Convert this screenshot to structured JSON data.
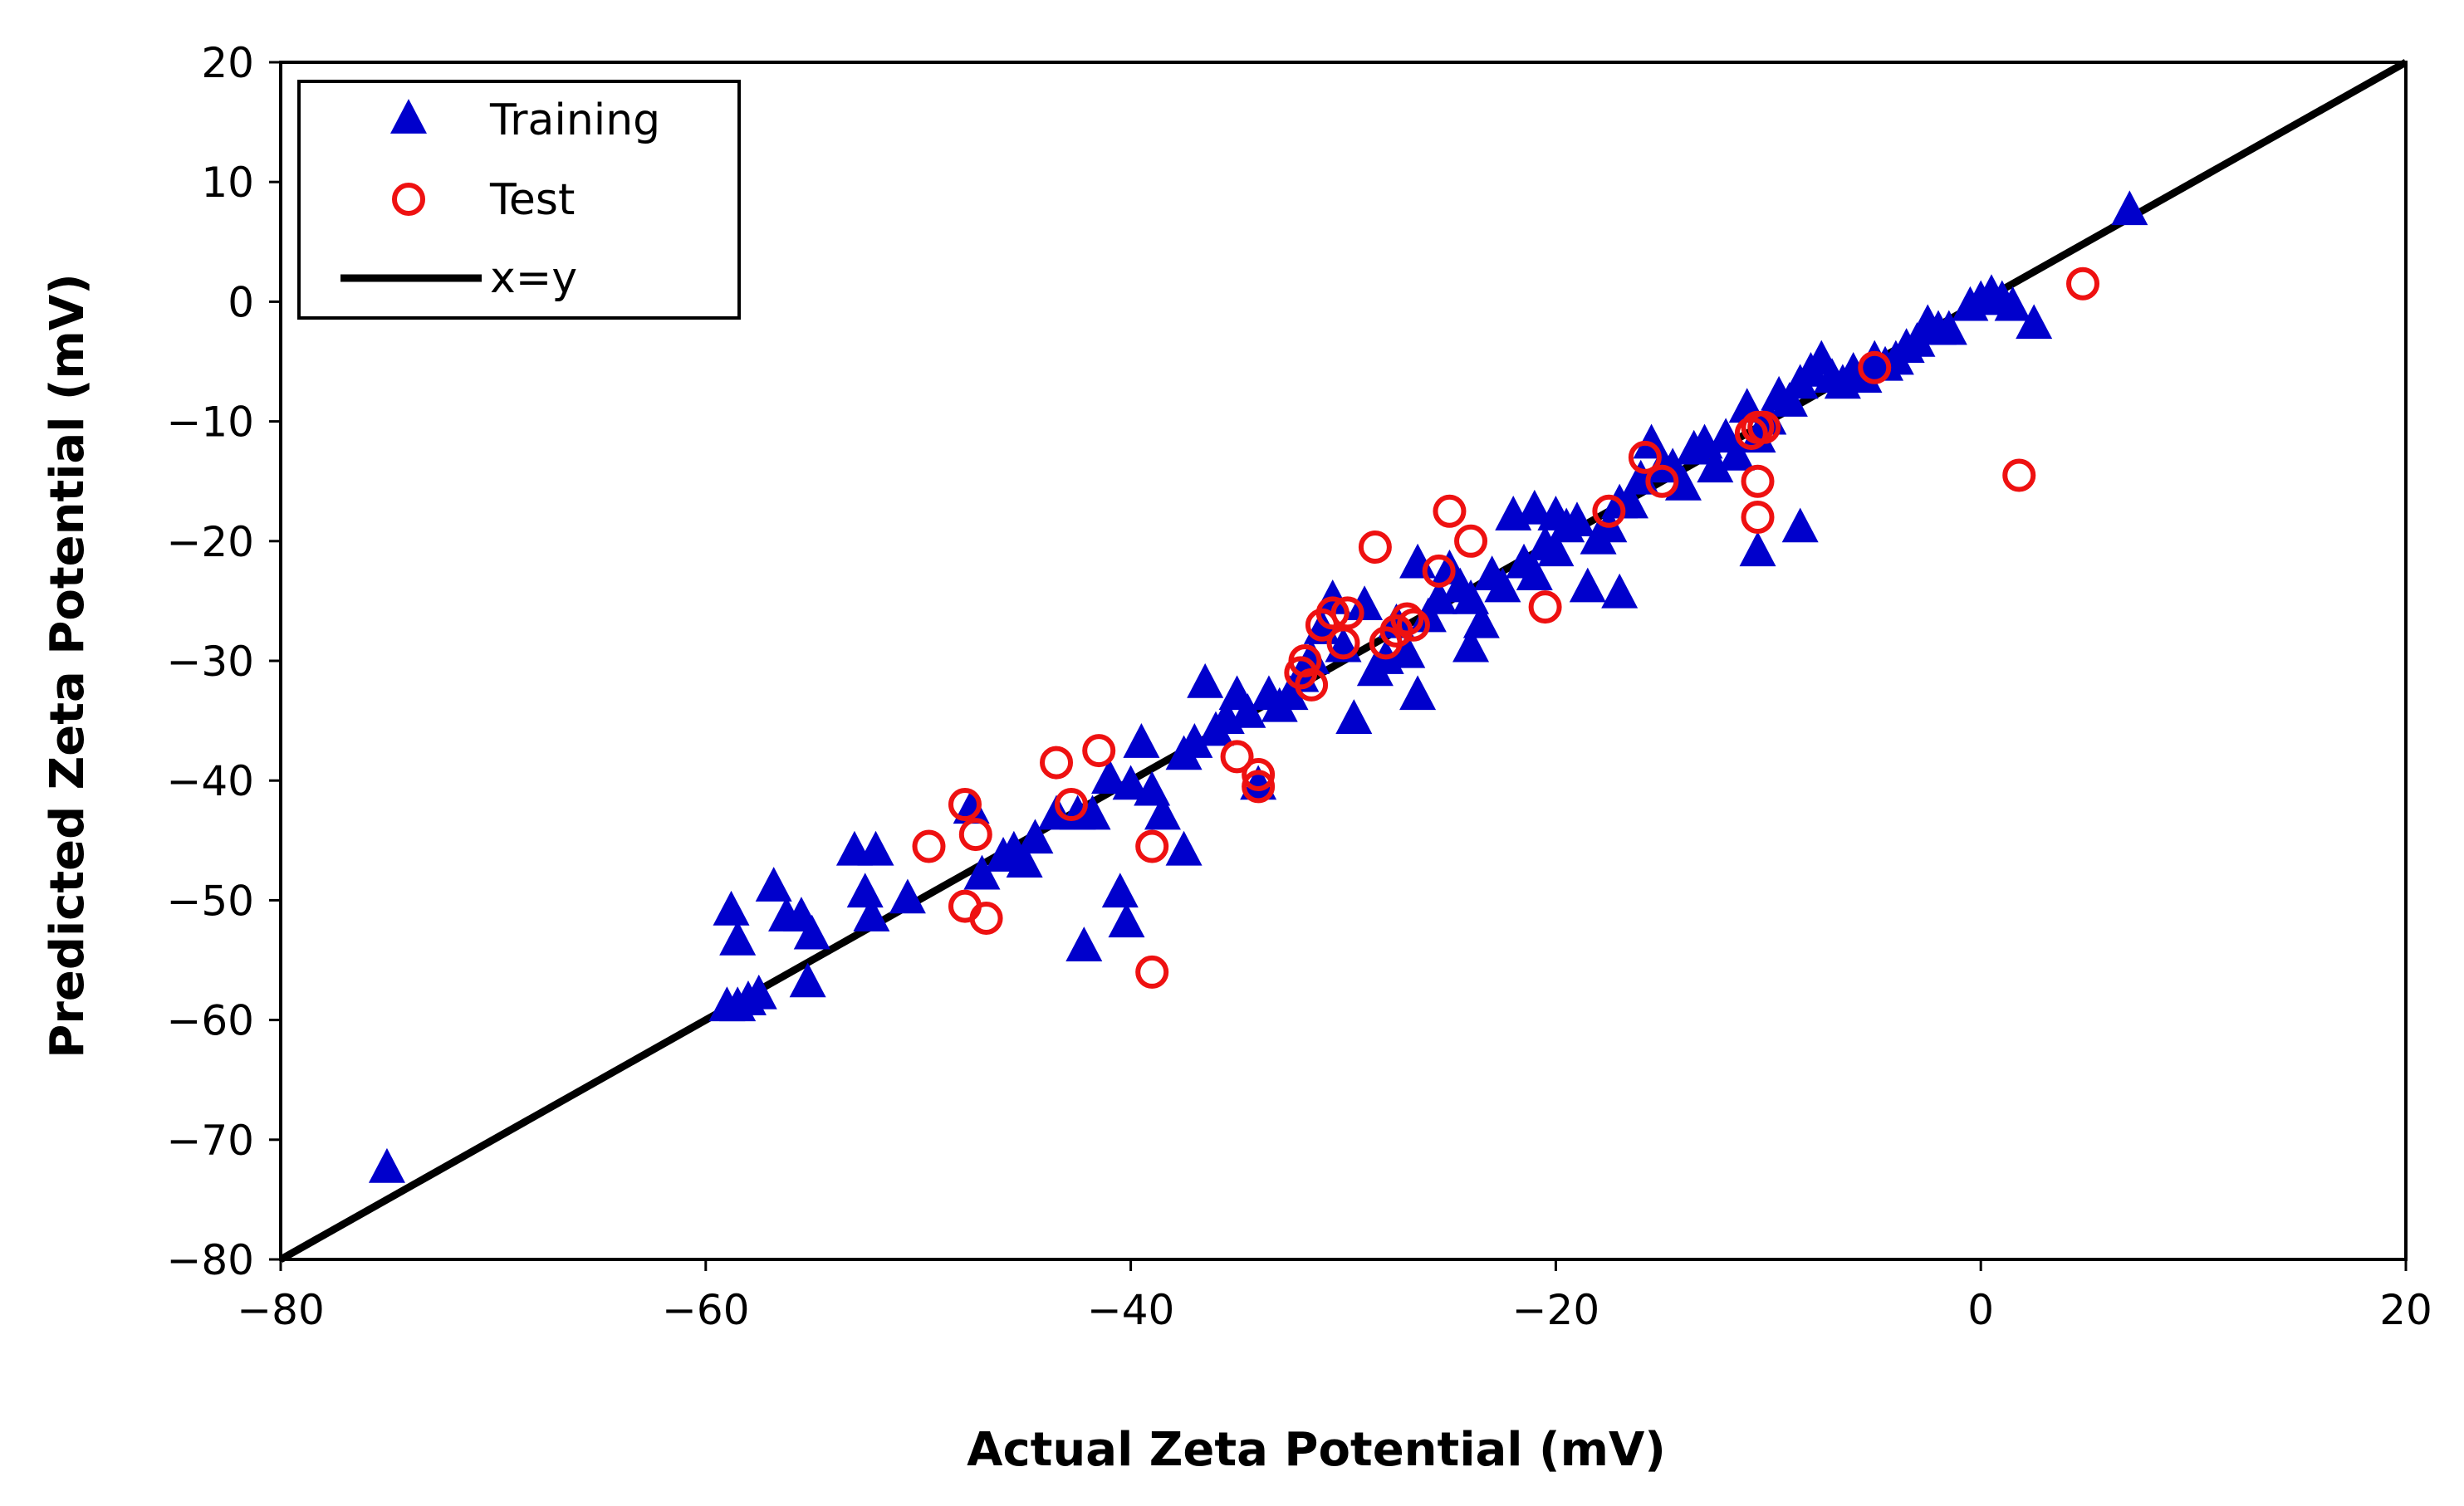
{
  "chart_data": {
    "type": "scatter",
    "xlabel": "Actual Zeta Potential (mV)",
    "ylabel": "Predicted Zeta Potential (mV)",
    "xlim": [
      -80,
      20
    ],
    "ylim": [
      -80,
      20
    ],
    "xticks": [
      "−80",
      "−60",
      "−40",
      "−20",
      "0",
      "20"
    ],
    "yticks": [
      "20",
      "10",
      "0",
      "−10",
      "−20",
      "−30",
      "−40",
      "−50",
      "−60",
      "−70",
      "−80"
    ],
    "grid": false,
    "legend_position": "top-left",
    "series": [
      {
        "name": "Training",
        "marker": "triangle",
        "color": "#0000CC",
        "points": [
          [
            -75,
            -72.5
          ],
          [
            -59,
            -59
          ],
          [
            -58.5,
            -59
          ],
          [
            -58,
            -58.5
          ],
          [
            -57.5,
            -58
          ],
          [
            -58.8,
            -51
          ],
          [
            -58.5,
            -53.5
          ],
          [
            -56.8,
            -49
          ],
          [
            -56.2,
            -51.5
          ],
          [
            -55.5,
            -51.5
          ],
          [
            -55.2,
            -57
          ],
          [
            -55,
            -53
          ],
          [
            -53,
            -46
          ],
          [
            -52.5,
            -49.5
          ],
          [
            -52.2,
            -51.5
          ],
          [
            -52,
            -46
          ],
          [
            -50.5,
            -50
          ],
          [
            -47.5,
            -42.5
          ],
          [
            -47,
            -48
          ],
          [
            -46,
            -46.5
          ],
          [
            -45.5,
            -46
          ],
          [
            -45,
            -47
          ],
          [
            -44.5,
            -45
          ],
          [
            -43.5,
            -43
          ],
          [
            -42.5,
            -43
          ],
          [
            -42.2,
            -54
          ],
          [
            -41.8,
            -43
          ],
          [
            -41,
            -40
          ],
          [
            -40.5,
            -49.5
          ],
          [
            -40.2,
            -52
          ],
          [
            -40,
            -40.5
          ],
          [
            -39.5,
            -37
          ],
          [
            -39,
            -41
          ],
          [
            -38.5,
            -43
          ],
          [
            -37.5,
            -46
          ],
          [
            -37.5,
            -38
          ],
          [
            -37,
            -37
          ],
          [
            -36.5,
            -32
          ],
          [
            -36,
            -36
          ],
          [
            -35.5,
            -35
          ],
          [
            -35,
            -33
          ],
          [
            -34.5,
            -34.5
          ],
          [
            -34,
            -40.5
          ],
          [
            -33.5,
            -33
          ],
          [
            -33,
            -34
          ],
          [
            -32.5,
            -33
          ],
          [
            -32,
            -31.5
          ],
          [
            -31.5,
            -30
          ],
          [
            -31,
            -27.5
          ],
          [
            -30.5,
            -25
          ],
          [
            -30,
            -29
          ],
          [
            -29.5,
            -35
          ],
          [
            -29,
            -25.5
          ],
          [
            -28.5,
            -31
          ],
          [
            -28,
            -30
          ],
          [
            -27.5,
            -27
          ],
          [
            -27,
            -29.5
          ],
          [
            -26.5,
            -33
          ],
          [
            -26.5,
            -22
          ],
          [
            -26,
            -26.5
          ],
          [
            -25.5,
            -25
          ],
          [
            -25,
            -22.5
          ],
          [
            -24.5,
            -24
          ],
          [
            -24,
            -25
          ],
          [
            -24,
            -29
          ],
          [
            -23.5,
            -27
          ],
          [
            -23,
            -23
          ],
          [
            -22.5,
            -24
          ],
          [
            -22,
            -18
          ],
          [
            -21.5,
            -22
          ],
          [
            -21,
            -23
          ],
          [
            -21,
            -17.5
          ],
          [
            -20.5,
            -20.5
          ],
          [
            -20,
            -21
          ],
          [
            -20,
            -18
          ],
          [
            -19.5,
            -19
          ],
          [
            -19,
            -18.5
          ],
          [
            -18.5,
            -24
          ],
          [
            -18,
            -20
          ],
          [
            -17.5,
            -19
          ],
          [
            -17,
            -24.5
          ],
          [
            -17,
            -17
          ],
          [
            -16.5,
            -17
          ],
          [
            -16,
            -15
          ],
          [
            -15.5,
            -12
          ],
          [
            -15,
            -14
          ],
          [
            -14.5,
            -14
          ],
          [
            -14,
            -15.5
          ],
          [
            -13.5,
            -12.5
          ],
          [
            -13,
            -12
          ],
          [
            -12.5,
            -14
          ],
          [
            -12,
            -11.5
          ],
          [
            -11.5,
            -13
          ],
          [
            -11,
            -9
          ],
          [
            -10.5,
            -11.5
          ],
          [
            -10.5,
            -21
          ],
          [
            -10,
            -10
          ],
          [
            -9.5,
            -8
          ],
          [
            -9,
            -8.5
          ],
          [
            -8.5,
            -19
          ],
          [
            -8.5,
            -7
          ],
          [
            -8,
            -6
          ],
          [
            -7.5,
            -5
          ],
          [
            -7,
            -6.5
          ],
          [
            -6.5,
            -7
          ],
          [
            -6,
            -6
          ],
          [
            -5.5,
            -6.5
          ],
          [
            -5,
            -5
          ],
          [
            -4.5,
            -5.5
          ],
          [
            -4,
            -5
          ],
          [
            -3.5,
            -4
          ],
          [
            -3,
            -3.5
          ],
          [
            -2.5,
            -2
          ],
          [
            -2,
            -2.5
          ],
          [
            -1.5,
            -2.5
          ],
          [
            -0.5,
            -0.5
          ],
          [
            0,
            0
          ],
          [
            0.5,
            0.5
          ],
          [
            1,
            0
          ],
          [
            1.5,
            -0.5
          ],
          [
            2.5,
            -2
          ],
          [
            7,
            7.5
          ]
        ]
      },
      {
        "name": "Test",
        "marker": "circle",
        "color": "#EE1111",
        "points": [
          [
            -49.5,
            -45.5
          ],
          [
            -47.8,
            -42
          ],
          [
            -47.8,
            -50.5
          ],
          [
            -47.3,
            -44.5
          ],
          [
            -46.8,
            -51.5
          ],
          [
            -43.5,
            -38.5
          ],
          [
            -42.8,
            -42
          ],
          [
            -41.5,
            -37.5
          ],
          [
            -39,
            -45.5
          ],
          [
            -39,
            -56
          ],
          [
            -35,
            -38
          ],
          [
            -34,
            -39.5
          ],
          [
            -34,
            -40.5
          ],
          [
            -32,
            -31
          ],
          [
            -31.8,
            -30
          ],
          [
            -31.5,
            -32
          ],
          [
            -31,
            -27
          ],
          [
            -30.5,
            -26
          ],
          [
            -30,
            -28.5
          ],
          [
            -29.8,
            -26
          ],
          [
            -28.5,
            -20.5
          ],
          [
            -28,
            -28.5
          ],
          [
            -27.5,
            -27.5
          ],
          [
            -27,
            -26.5
          ],
          [
            -26.7,
            -27
          ],
          [
            -25.5,
            -22.5
          ],
          [
            -25,
            -17.5
          ],
          [
            -24,
            -20
          ],
          [
            -20.5,
            -25.5
          ],
          [
            -17.5,
            -17.5
          ],
          [
            -15.8,
            -13
          ],
          [
            -15,
            -15
          ],
          [
            -10.8,
            -11
          ],
          [
            -10.5,
            -10.5
          ],
          [
            -10.5,
            -15
          ],
          [
            -10.5,
            -18
          ],
          [
            -10.2,
            -10.5
          ],
          [
            -5,
            -5.5
          ],
          [
            1.8,
            -14.5
          ],
          [
            4.8,
            1.5
          ]
        ]
      }
    ],
    "reference_line": {
      "name": "x=y",
      "from": [
        -80,
        -80
      ],
      "to": [
        20,
        20
      ],
      "color": "#000000"
    }
  }
}
